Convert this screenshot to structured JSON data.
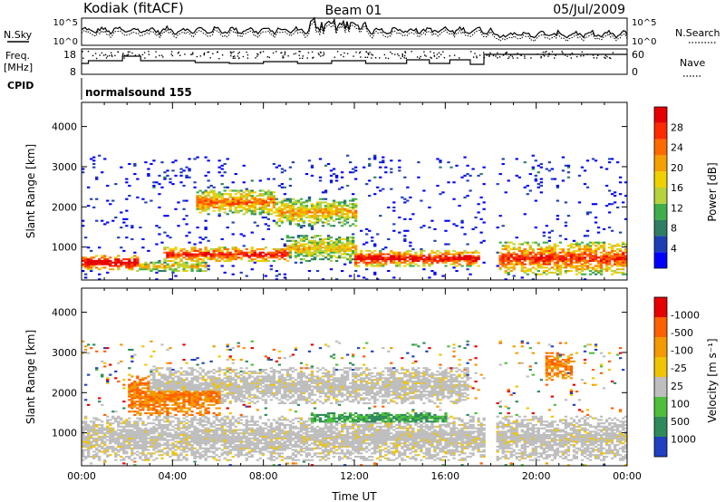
{
  "header": {
    "station": "Kodiak (fitACF)",
    "beam": "Beam 01",
    "date": "05/Jul/2009"
  },
  "param_panels": {
    "nsky": {
      "label": "N.Sky",
      "tick_top": "10^5",
      "tick_bottom": "10^0"
    },
    "nsearch": {
      "label": "N.Search",
      "tick_top": "10^5",
      "tick_bottom": "10^0"
    },
    "freq": {
      "label_line1": "Freq.",
      "label_line2": "[MHz]",
      "tick_top": "18",
      "tick_bottom": "8"
    },
    "nave": {
      "label": "Nave",
      "tick_top": "60",
      "tick_bottom": "0"
    },
    "cpid": {
      "label": "CPID",
      "text": "normalsound 155"
    }
  },
  "chart_data": [
    {
      "type": "heatmap",
      "name": "power",
      "ylabel": "Slant Range [km]",
      "xlabel": "",
      "xlim_hours": [
        0,
        24
      ],
      "ylim": [
        180,
        4600
      ],
      "y_ticks": [
        1000,
        2000,
        3000,
        4000
      ],
      "x_ticks": [
        "00:00",
        "04:00",
        "08:00",
        "12:00",
        "16:00",
        "20:00",
        "00:00"
      ],
      "colorbar": {
        "label": "Power [dB]",
        "ticks": [
          "4",
          "8",
          "12",
          "16",
          "20",
          "24",
          "28"
        ],
        "colors": [
          "#0000ff",
          "#1e3fb4",
          "#2e7d64",
          "#3fae4a",
          "#b6d23c",
          "#f0d000",
          "#f5a000",
          "#ff6a00",
          "#ff2a00",
          "#e60000"
        ]
      },
      "data_gap_hours": [
        17.75,
        18.2
      ],
      "echo_bands": [
        {
          "t0": 0.0,
          "t1": 2.5,
          "r0": 400,
          "r1": 800,
          "peak": 0.95
        },
        {
          "t0": 2.3,
          "t1": 5.5,
          "r0": 350,
          "r1": 650,
          "peak": 0.55
        },
        {
          "t0": 3.5,
          "t1": 9.0,
          "r0": 600,
          "r1": 1000,
          "peak": 0.85
        },
        {
          "t0": 5.0,
          "t1": 8.5,
          "r0": 1800,
          "r1": 2400,
          "peak": 0.7
        },
        {
          "t0": 8.5,
          "t1": 12.0,
          "r0": 1500,
          "r1": 2200,
          "peak": 0.6
        },
        {
          "t0": 9.0,
          "t1": 12.0,
          "r0": 600,
          "r1": 1300,
          "peak": 0.55
        },
        {
          "t0": 12.0,
          "t1": 17.5,
          "r0": 500,
          "r1": 900,
          "peak": 0.9
        },
        {
          "t0": 18.3,
          "t1": 24.0,
          "r0": 300,
          "r1": 1100,
          "peak": 0.8
        }
      ]
    },
    {
      "type": "heatmap",
      "name": "velocity",
      "ylabel": "Slant Range [km]",
      "xlabel": "Time UT",
      "xlim_hours": [
        0,
        24
      ],
      "ylim": [
        180,
        4600
      ],
      "y_ticks": [
        1000,
        2000,
        3000,
        4000
      ],
      "x_ticks": [
        "00:00",
        "04:00",
        "08:00",
        "12:00",
        "16:00",
        "20:00",
        "00:00"
      ],
      "colorbar": {
        "label": "Velocity [m s⁻¹]",
        "ticks": [
          "1000",
          "500",
          "100",
          "25",
          "-25",
          "-100",
          "-500",
          "-1000"
        ],
        "colors": [
          "#2040c0",
          "#2e8a5a",
          "#4dbf3a",
          "#bebebe",
          "#f0c400",
          "#f39a00",
          "#ff6000",
          "#e60000"
        ]
      },
      "data_gap_hours": [
        17.75,
        18.2
      ],
      "echo_bands": [
        {
          "t0": 0.0,
          "t1": 24.0,
          "r0": 300,
          "r1": 1400,
          "kind": "ground"
        },
        {
          "t0": 3.0,
          "t1": 17.0,
          "r0": 1700,
          "r1": 2600,
          "kind": "ground"
        },
        {
          "t0": 2.0,
          "t1": 6.0,
          "r0": 1400,
          "r1": 2400,
          "kind": "negative"
        },
        {
          "t0": 10.0,
          "t1": 16.0,
          "r0": 1200,
          "r1": 1500,
          "kind": "positive"
        },
        {
          "t0": 20.3,
          "t1": 21.5,
          "r0": 2300,
          "r1": 3000,
          "kind": "negative"
        }
      ]
    }
  ]
}
